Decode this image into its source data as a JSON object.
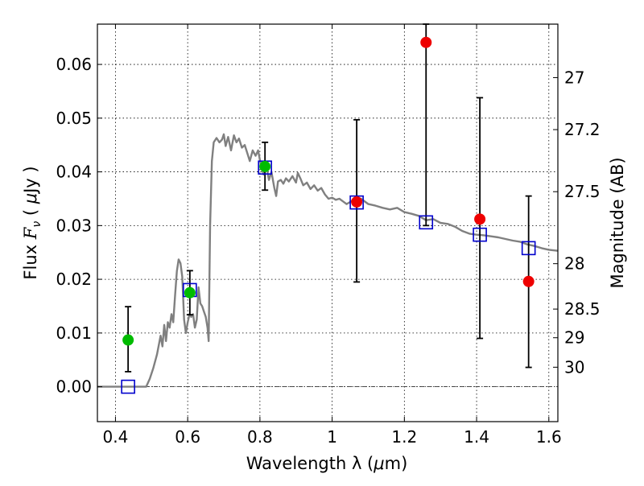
{
  "chart_data": {
    "type": "scatter",
    "title": "",
    "xlabel_text": "Wavelength  λ (",
    "xlabel_mu": "μ",
    "xlabel_unit": "m)",
    "ylabel_prefix": "Flux  ",
    "ylabel_F": "F",
    "ylabel_nu": "ν",
    "ylabel_mid": "  (  ",
    "ylabel_mu": "μ",
    "ylabel_suffix": "Jy  )",
    "y2label": "Magnitude (AB)",
    "xlim": [
      0.35,
      1.625
    ],
    "ylim": [
      -0.0065,
      0.0675
    ],
    "grid": true,
    "x_ticks": [
      {
        "value": 0.4,
        "label": "0.4"
      },
      {
        "value": 0.6,
        "label": "0.6"
      },
      {
        "value": 0.8,
        "label": "0.8"
      },
      {
        "value": 1.0,
        "label": "1"
      },
      {
        "value": 1.2,
        "label": "1.2"
      },
      {
        "value": 1.4,
        "label": "1.4"
      },
      {
        "value": 1.6,
        "label": "1.6"
      }
    ],
    "y_ticks": [
      {
        "value": 0.0,
        "label": "0.00"
      },
      {
        "value": 0.01,
        "label": "0.01"
      },
      {
        "value": 0.02,
        "label": "0.02"
      },
      {
        "value": 0.03,
        "label": "0.03"
      },
      {
        "value": 0.04,
        "label": "0.04"
      },
      {
        "value": 0.05,
        "label": "0.05"
      },
      {
        "value": 0.06,
        "label": "0.06"
      }
    ],
    "mag_ticks": [
      {
        "mag": 27,
        "label": "27"
      },
      {
        "mag": 27.2,
        "label": "27.2"
      },
      {
        "mag": 27.5,
        "label": "27.5"
      },
      {
        "mag": 28,
        "label": "28"
      },
      {
        "mag": 28.5,
        "label": "28.5"
      },
      {
        "mag": 29,
        "label": "29"
      },
      {
        "mag": 30,
        "label": "30"
      }
    ],
    "model_sed": {
      "color": "#808080",
      "points": [
        [
          0.35,
          0.0
        ],
        [
          0.485,
          0.0
        ],
        [
          0.495,
          0.0015
        ],
        [
          0.505,
          0.0035
        ],
        [
          0.515,
          0.006
        ],
        [
          0.525,
          0.0095
        ],
        [
          0.53,
          0.0075
        ],
        [
          0.535,
          0.0115
        ],
        [
          0.54,
          0.0085
        ],
        [
          0.545,
          0.012
        ],
        [
          0.55,
          0.011
        ],
        [
          0.555,
          0.0135
        ],
        [
          0.56,
          0.012
        ],
        [
          0.565,
          0.017
        ],
        [
          0.57,
          0.0215
        ],
        [
          0.575,
          0.0237
        ],
        [
          0.58,
          0.023
        ],
        [
          0.585,
          0.0205
        ],
        [
          0.59,
          0.0125
        ],
        [
          0.595,
          0.01
        ],
        [
          0.6,
          0.012
        ],
        [
          0.605,
          0.0135
        ],
        [
          0.61,
          0.013
        ],
        [
          0.615,
          0.0135
        ],
        [
          0.62,
          0.011
        ],
        [
          0.625,
          0.0125
        ],
        [
          0.63,
          0.0185
        ],
        [
          0.635,
          0.0155
        ],
        [
          0.64,
          0.015
        ],
        [
          0.645,
          0.014
        ],
        [
          0.65,
          0.013
        ],
        [
          0.655,
          0.011
        ],
        [
          0.658,
          0.0085
        ],
        [
          0.662,
          0.03
        ],
        [
          0.667,
          0.042
        ],
        [
          0.672,
          0.0455
        ],
        [
          0.68,
          0.0463
        ],
        [
          0.688,
          0.0455
        ],
        [
          0.695,
          0.046
        ],
        [
          0.7,
          0.047
        ],
        [
          0.705,
          0.0448
        ],
        [
          0.712,
          0.0465
        ],
        [
          0.72,
          0.044
        ],
        [
          0.728,
          0.0468
        ],
        [
          0.735,
          0.0455
        ],
        [
          0.742,
          0.0462
        ],
        [
          0.75,
          0.0445
        ],
        [
          0.758,
          0.045
        ],
        [
          0.765,
          0.0435
        ],
        [
          0.772,
          0.042
        ],
        [
          0.78,
          0.044
        ],
        [
          0.788,
          0.043
        ],
        [
          0.795,
          0.044
        ],
        [
          0.802,
          0.0415
        ],
        [
          0.81,
          0.0395
        ],
        [
          0.818,
          0.041
        ],
        [
          0.825,
          0.0385
        ],
        [
          0.832,
          0.04
        ],
        [
          0.84,
          0.037
        ],
        [
          0.845,
          0.0355
        ],
        [
          0.85,
          0.0382
        ],
        [
          0.858,
          0.0385
        ],
        [
          0.865,
          0.0378
        ],
        [
          0.872,
          0.0388
        ],
        [
          0.88,
          0.0382
        ],
        [
          0.89,
          0.0392
        ],
        [
          0.9,
          0.038
        ],
        [
          0.905,
          0.0398
        ],
        [
          0.912,
          0.0388
        ],
        [
          0.92,
          0.0375
        ],
        [
          0.93,
          0.038
        ],
        [
          0.94,
          0.0368
        ],
        [
          0.95,
          0.0375
        ],
        [
          0.96,
          0.0365
        ],
        [
          0.97,
          0.037
        ],
        [
          0.98,
          0.0358
        ],
        [
          0.99,
          0.035
        ],
        [
          1.0,
          0.0352
        ],
        [
          1.01,
          0.0348
        ],
        [
          1.02,
          0.035
        ],
        [
          1.03,
          0.0345
        ],
        [
          1.04,
          0.034
        ],
        [
          1.06,
          0.0348
        ],
        [
          1.08,
          0.035
        ],
        [
          1.1,
          0.034
        ],
        [
          1.12,
          0.0337
        ],
        [
          1.14,
          0.0333
        ],
        [
          1.16,
          0.033
        ],
        [
          1.18,
          0.0333
        ],
        [
          1.2,
          0.0325
        ],
        [
          1.22,
          0.0322
        ],
        [
          1.24,
          0.0318
        ],
        [
          1.26,
          0.031
        ],
        [
          1.28,
          0.0312
        ],
        [
          1.3,
          0.0305
        ],
        [
          1.32,
          0.0303
        ],
        [
          1.34,
          0.0298
        ],
        [
          1.36,
          0.029
        ],
        [
          1.38,
          0.0285
        ],
        [
          1.4,
          0.0283
        ],
        [
          1.42,
          0.0282
        ],
        [
          1.44,
          0.028
        ],
        [
          1.46,
          0.0278
        ],
        [
          1.48,
          0.0275
        ],
        [
          1.5,
          0.0272
        ],
        [
          1.52,
          0.027
        ],
        [
          1.54,
          0.0265
        ],
        [
          1.56,
          0.0262
        ],
        [
          1.58,
          0.0258
        ],
        [
          1.6,
          0.0255
        ],
        [
          1.625,
          0.0253
        ]
      ]
    },
    "model_bands": {
      "color": "#0000cc",
      "points": [
        {
          "x": 0.435,
          "y": 0.0
        },
        {
          "x": 0.606,
          "y": 0.018
        },
        {
          "x": 0.814,
          "y": 0.0408
        },
        {
          "x": 1.068,
          "y": 0.0343
        },
        {
          "x": 1.26,
          "y": 0.0306
        },
        {
          "x": 1.409,
          "y": 0.0283
        },
        {
          "x": 1.544,
          "y": 0.0258
        }
      ]
    },
    "observed": [
      {
        "x": 0.435,
        "y": 0.0087,
        "ylo": 0.0028,
        "yhi": 0.0149,
        "color": "#00bb00"
      },
      {
        "x": 0.606,
        "y": 0.0175,
        "ylo": 0.0134,
        "yhi": 0.0216,
        "color": "#00bb00"
      },
      {
        "x": 0.814,
        "y": 0.041,
        "ylo": 0.0366,
        "yhi": 0.0455,
        "color": "#00bb00"
      },
      {
        "x": 1.068,
        "y": 0.0344,
        "ylo": 0.0195,
        "yhi": 0.0497,
        "color": "#ee0000"
      },
      {
        "x": 1.26,
        "y": 0.0641,
        "ylo": 0.03,
        "yhi": 0.0675,
        "color": "#ee0000"
      },
      {
        "x": 1.409,
        "y": 0.0312,
        "ylo": 0.009,
        "yhi": 0.0538,
        "color": "#ee0000"
      },
      {
        "x": 1.544,
        "y": 0.0196,
        "ylo": 0.0036,
        "yhi": 0.0355,
        "color": "#ee0000"
      }
    ]
  }
}
